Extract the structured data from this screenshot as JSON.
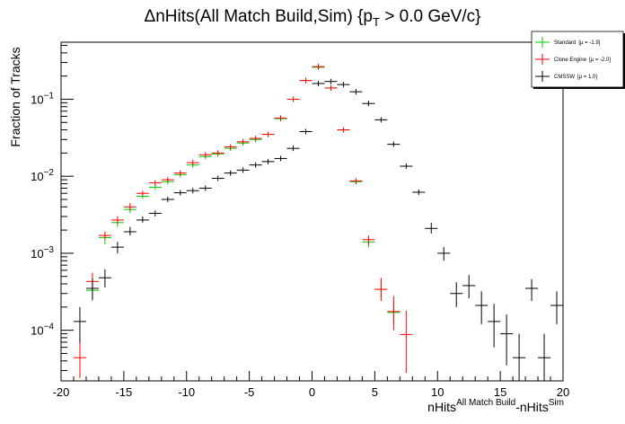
{
  "chart_data": {
    "type": "scatter",
    "title": {
      "main": "ΔnHits(All Match Build,Sim) {p",
      "sub": "T",
      "rest": " > 0.0 GeV/c}"
    },
    "xlabel": {
      "base": "nHits",
      "sup1": "All Match Build",
      "mid": "-nHits",
      "sup2": "Sim"
    },
    "ylabel": "Fraction of Tracks",
    "xlim": [
      -20,
      20
    ],
    "ylim": [
      2.2e-05,
      0.55
    ],
    "yscale": "log",
    "grid": false,
    "legend_position": "top-right",
    "x_ticks": [
      -20,
      -15,
      -10,
      -5,
      0,
      5,
      10,
      15,
      20
    ],
    "y_ticks": [
      {
        "value": 0.0001,
        "base": "10",
        "exp": "−4"
      },
      {
        "value": 0.001,
        "base": "10",
        "exp": "−3"
      },
      {
        "value": 0.01,
        "base": "10",
        "exp": "−2"
      },
      {
        "value": 0.1,
        "base": "10",
        "exp": "−1"
      }
    ],
    "series": [
      {
        "name": "Standard",
        "stat": "[μ = -1.9]",
        "color": "#00cc00",
        "points": [
          [
            -17.5,
            0.00033
          ],
          [
            -16.5,
            0.0016
          ],
          [
            -15.5,
            0.0025
          ],
          [
            -14.5,
            0.0037
          ],
          [
            -13.5,
            0.0055
          ],
          [
            -12.5,
            0.0072
          ],
          [
            -11.5,
            0.0085
          ],
          [
            -10.5,
            0.0105
          ],
          [
            -9.5,
            0.014
          ],
          [
            -8.5,
            0.018
          ],
          [
            -7.5,
            0.0195
          ],
          [
            -6.5,
            0.023
          ],
          [
            -5.5,
            0.027
          ],
          [
            -4.5,
            0.03
          ],
          [
            -3.5,
            0.035
          ],
          [
            -2.5,
            0.056
          ],
          [
            -1.5,
            0.1
          ],
          [
            -0.5,
            0.175
          ],
          [
            0.5,
            0.26
          ],
          [
            1.5,
            0.14
          ],
          [
            2.5,
            0.04
          ],
          [
            3.5,
            0.0085
          ],
          [
            4.5,
            0.0014
          ],
          [
            5.5,
            0.00034
          ],
          [
            6.5,
            0.00017
          ]
        ],
        "errors": [
          [
            -17.5,
            0.00024,
            0.00045
          ],
          [
            -16.5,
            0.0013,
            0.0019
          ],
          [
            -15.5,
            0.0022,
            0.0028
          ],
          [
            -14.5,
            0.0033,
            0.0041
          ],
          [
            4.5,
            0.0012,
            0.0016
          ],
          [
            5.5,
            0.00027,
            0.00042
          ],
          [
            6.5,
            0.00012,
            0.00024
          ]
        ]
      },
      {
        "name": "Clone Engine",
        "stat": "[μ = -2.0]",
        "color": "#ff0000",
        "points": [
          [
            -18.5,
            4.4e-05
          ],
          [
            -17.5,
            0.00043
          ],
          [
            -16.5,
            0.0017
          ],
          [
            -15.5,
            0.0027
          ],
          [
            -14.5,
            0.004
          ],
          [
            -13.5,
            0.006
          ],
          [
            -12.5,
            0.0082
          ],
          [
            -11.5,
            0.009
          ],
          [
            -10.5,
            0.011
          ],
          [
            -9.5,
            0.015
          ],
          [
            -8.5,
            0.019
          ],
          [
            -7.5,
            0.02
          ],
          [
            -6.5,
            0.024
          ],
          [
            -5.5,
            0.028
          ],
          [
            -4.5,
            0.031
          ],
          [
            -3.5,
            0.035
          ],
          [
            -2.5,
            0.057
          ],
          [
            -1.5,
            0.1
          ],
          [
            -0.5,
            0.175
          ],
          [
            0.5,
            0.265
          ],
          [
            1.5,
            0.14
          ],
          [
            2.5,
            0.04
          ],
          [
            3.5,
            0.0087
          ],
          [
            4.5,
            0.0015
          ],
          [
            5.5,
            0.00034
          ],
          [
            6.5,
            0.000175
          ],
          [
            7.5,
            8.8e-05
          ]
        ],
        "errors": [
          [
            -18.5,
            2.4e-05,
            8e-05
          ],
          [
            -17.5,
            0.00033,
            0.00056
          ],
          [
            -16.5,
            0.0015,
            0.0019
          ],
          [
            -15.5,
            0.0024,
            0.003
          ],
          [
            -14.5,
            0.0036,
            0.0045
          ],
          [
            4.5,
            0.0013,
            0.0017
          ],
          [
            5.5,
            0.00024,
            0.00048
          ],
          [
            6.5,
            0.0001,
            0.00028
          ],
          [
            7.5,
            2.8e-05,
            0.00018
          ]
        ]
      },
      {
        "name": "CMSSW",
        "stat": "[μ = 1.0]",
        "color": "#000000",
        "points": [
          [
            -18.5,
            0.00013
          ],
          [
            -17.5,
            0.00035
          ],
          [
            -16.5,
            0.00048
          ],
          [
            -15.5,
            0.0012
          ],
          [
            -14.5,
            0.0019
          ],
          [
            -13.5,
            0.0027
          ],
          [
            -12.5,
            0.0033
          ],
          [
            -11.5,
            0.005
          ],
          [
            -10.5,
            0.0061
          ],
          [
            -9.5,
            0.0065
          ],
          [
            -8.5,
            0.007
          ],
          [
            -7.5,
            0.0094
          ],
          [
            -6.5,
            0.011
          ],
          [
            -5.5,
            0.012
          ],
          [
            -4.5,
            0.014
          ],
          [
            -3.5,
            0.0155
          ],
          [
            -2.5,
            0.017
          ],
          [
            -1.5,
            0.023
          ],
          [
            -0.5,
            0.038
          ],
          [
            0.5,
            0.16
          ],
          [
            1.5,
            0.17
          ],
          [
            2.5,
            0.155
          ],
          [
            3.5,
            0.125
          ],
          [
            4.5,
            0.088
          ],
          [
            5.5,
            0.054
          ],
          [
            6.5,
            0.026
          ],
          [
            7.5,
            0.0135
          ],
          [
            8.5,
            0.0062
          ],
          [
            9.5,
            0.0021
          ],
          [
            10.5,
            0.001
          ],
          [
            11.5,
            0.0003
          ],
          [
            12.5,
            0.00038
          ],
          [
            13.5,
            0.00021
          ],
          [
            14.5,
            0.00013
          ],
          [
            15.5,
            9e-05
          ],
          [
            16.5,
            4.4e-05
          ],
          [
            17.5,
            0.00035
          ],
          [
            18.5,
            4.4e-05
          ],
          [
            19.5,
            0.00021
          ]
        ],
        "errors": [
          [
            -18.5,
            7e-05,
            0.0002
          ],
          [
            -17.5,
            0.00025,
            0.00047
          ],
          [
            -16.5,
            0.00036,
            0.00062
          ],
          [
            -15.5,
            0.001,
            0.0014
          ],
          [
            -14.5,
            0.0017,
            0.0022
          ],
          [
            -13.5,
            0.0025,
            0.003
          ],
          [
            -12.5,
            0.003,
            0.0036
          ],
          [
            9.5,
            0.0018,
            0.0025
          ],
          [
            10.5,
            0.0008,
            0.0012
          ],
          [
            11.5,
            0.0002,
            0.00042
          ],
          [
            12.5,
            0.00026,
            0.00052
          ],
          [
            13.5,
            0.00012,
            0.00032
          ],
          [
            14.5,
            6e-05,
            0.00022
          ],
          [
            15.5,
            3.5e-05,
            0.00016
          ],
          [
            16.5,
            2.2e-05,
            9e-05
          ],
          [
            17.5,
            0.00024,
            0.00046
          ],
          [
            18.5,
            2.2e-05,
            9e-05
          ],
          [
            19.5,
            0.00012,
            0.00032
          ]
        ]
      }
    ]
  }
}
